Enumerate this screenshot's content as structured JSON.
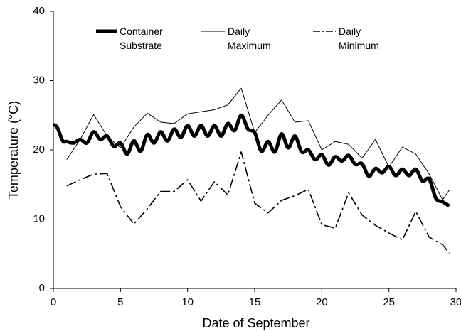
{
  "chart_data": {
    "type": "line",
    "xlabel": "Date of September",
    "ylabel": "Temperature (°C)",
    "xlim": [
      0,
      30
    ],
    "xticks": [
      0,
      5,
      10,
      15,
      20,
      25,
      30
    ],
    "ylim": [
      0,
      40
    ],
    "yticks": [
      0,
      10,
      20,
      30,
      40
    ],
    "grid": false,
    "series": [
      {
        "name": "Container Substrate",
        "color": "#000000",
        "width": 5,
        "dash": "none",
        "smooth": true,
        "x": [
          0,
          0.3,
          0.7,
          1,
          1.5,
          2,
          2.5,
          3,
          3.5,
          4,
          4.5,
          5,
          5.5,
          6,
          6.5,
          7,
          7.5,
          8,
          8.5,
          9,
          9.5,
          10,
          10.5,
          11,
          11.5,
          12,
          12.5,
          13,
          13.5,
          14,
          14.5,
          15,
          15.5,
          16,
          16.5,
          17,
          17.5,
          18,
          18.5,
          19,
          19.5,
          20,
          20.5,
          21,
          21.5,
          22,
          22.5,
          23,
          23.5,
          24,
          24.5,
          25,
          25.5,
          26,
          26.5,
          27,
          27.5,
          28,
          28.5,
          29,
          29.5
        ],
        "values": [
          23.7,
          23.2,
          21.3,
          21.2,
          21.0,
          21.5,
          21.0,
          22.6,
          21.5,
          22.0,
          20.5,
          21.0,
          19.4,
          21.3,
          19.8,
          22.2,
          21.0,
          22.6,
          21.3,
          23.0,
          21.8,
          23.5,
          22.0,
          23.5,
          22.0,
          23.5,
          22.0,
          23.8,
          22.8,
          25.0,
          23.0,
          22.5,
          19.8,
          21.2,
          19.7,
          22.3,
          20.3,
          22.0,
          19.7,
          20.0,
          18.6,
          19.3,
          17.8,
          19.0,
          18.4,
          19.2,
          17.9,
          18.0,
          16.2,
          17.3,
          16.7,
          17.6,
          16.3,
          17.2,
          16.3,
          17.2,
          15.5,
          15.8,
          13.0,
          12.5,
          11.9
        ]
      },
      {
        "name": "Daily Maximum",
        "color": "#000000",
        "width": 1,
        "dash": "none",
        "smooth": false,
        "x": [
          1,
          2,
          3,
          4,
          5,
          6,
          7,
          8,
          9,
          10,
          11,
          12,
          13,
          14,
          15,
          16,
          17,
          18,
          19,
          20,
          21,
          22,
          23,
          24,
          25,
          26,
          27,
          28,
          29,
          29.5
        ],
        "values": [
          18.6,
          21.5,
          25.1,
          22.0,
          20.3,
          23.3,
          25.3,
          24.0,
          23.8,
          25.2,
          25.5,
          25.8,
          26.5,
          28.9,
          22.5,
          25.0,
          27.2,
          24.0,
          24.2,
          20.0,
          21.2,
          20.8,
          18.8,
          21.5,
          17.5,
          20.4,
          19.4,
          16.5,
          12.8,
          14.2
        ]
      },
      {
        "name": "Daily Minimum",
        "color": "#000000",
        "width": 1.6,
        "dash": "14 4 3 4",
        "smooth": false,
        "x": [
          1,
          2,
          3,
          4,
          5,
          6,
          7,
          8,
          9,
          10,
          11,
          12,
          13,
          14,
          15,
          16,
          17,
          18,
          19,
          20,
          21,
          22,
          23,
          24,
          25,
          26,
          27,
          28,
          29,
          29.5
        ],
        "values": [
          14.8,
          15.7,
          16.5,
          16.6,
          11.8,
          9.3,
          11.5,
          14.0,
          14.0,
          15.7,
          12.6,
          15.4,
          13.5,
          19.7,
          12.3,
          10.9,
          12.7,
          13.4,
          14.3,
          9.2,
          8.7,
          13.8,
          10.6,
          9.1,
          8.0,
          7.0,
          11.1,
          7.4,
          6.3,
          5.1
        ]
      }
    ]
  }
}
